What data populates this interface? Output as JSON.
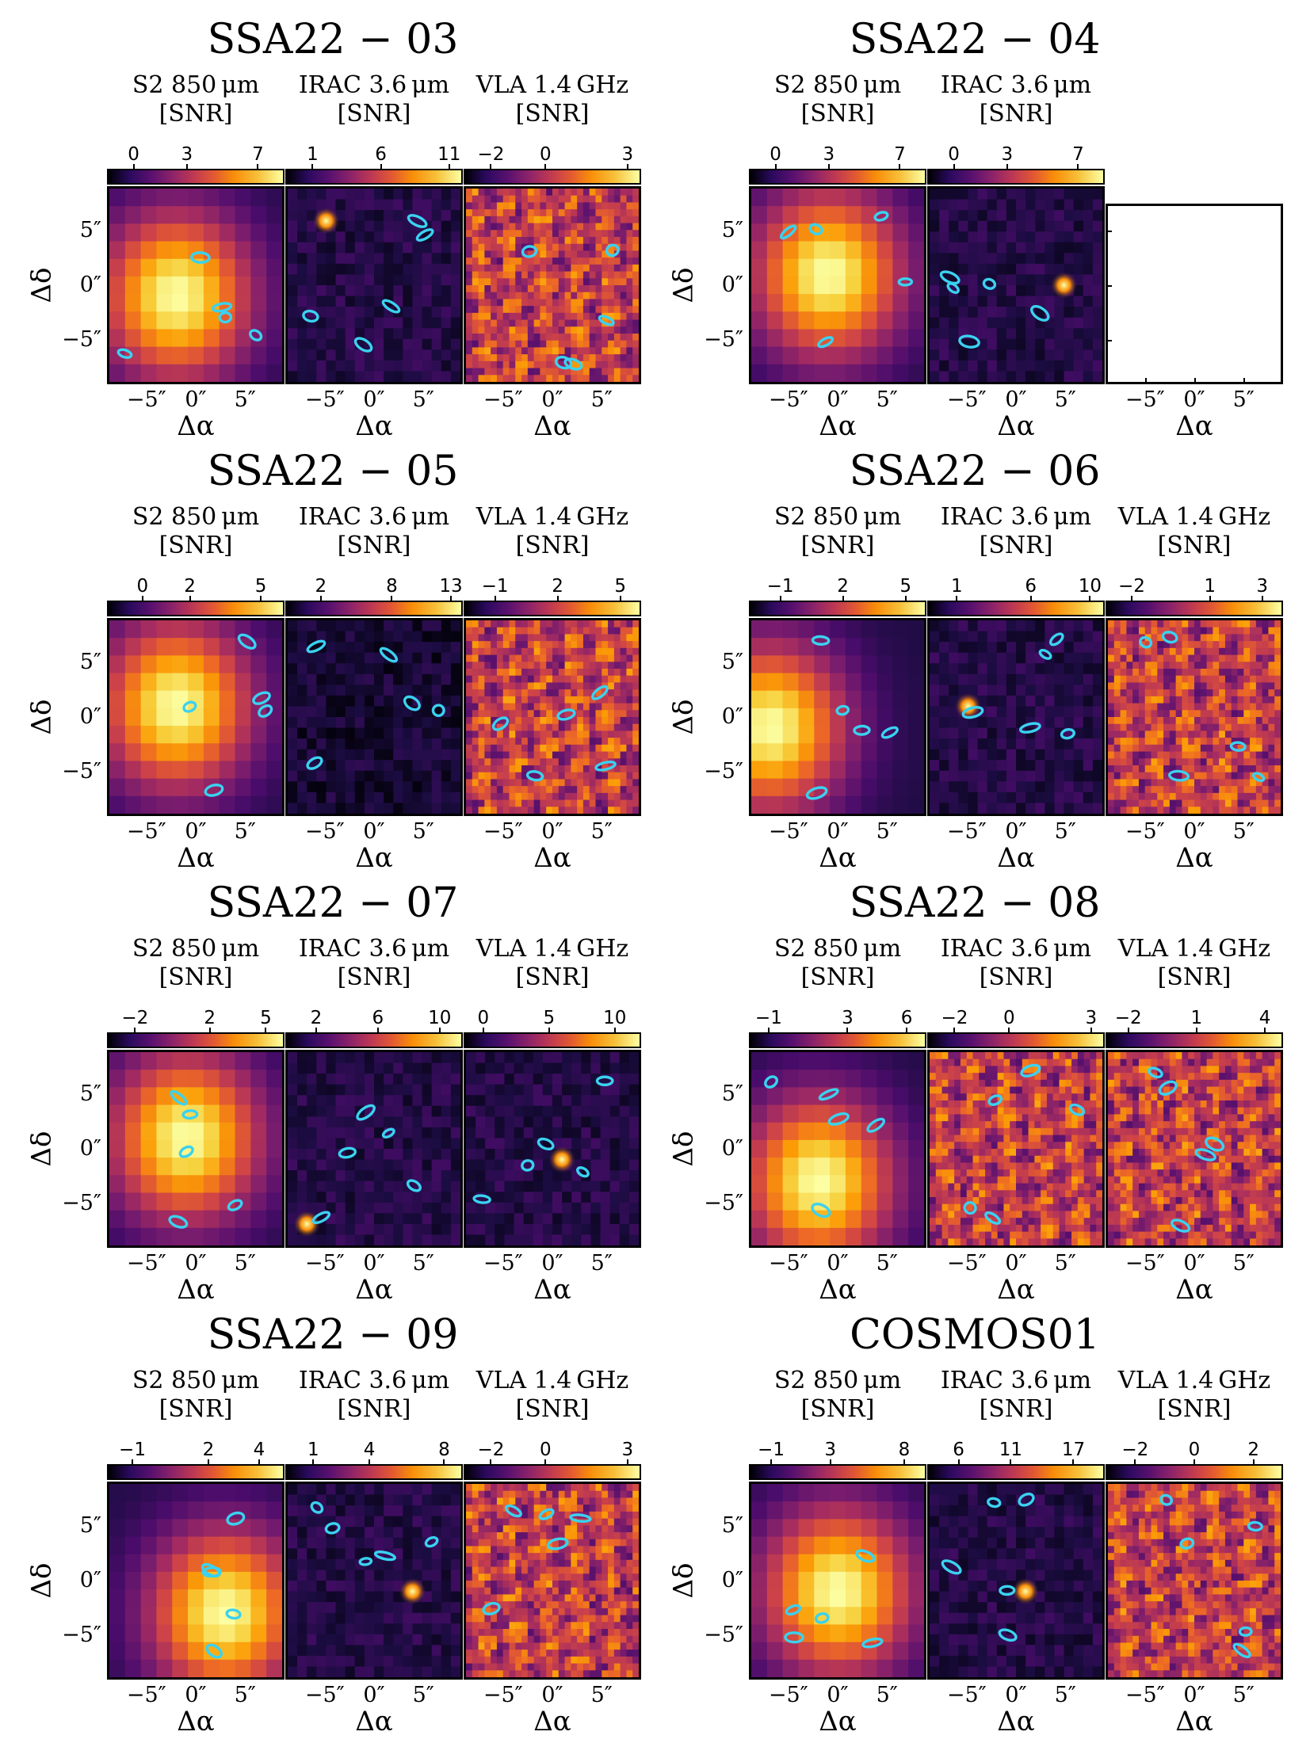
{
  "figure": {
    "panel_titles": [
      "S2 850 μm",
      "IRAC 3.6 μm",
      "VLA 1.4 GHz"
    ],
    "snr_label": "[SNR]",
    "xlabel": "Δα",
    "ylabel": "Δδ",
    "xticks": [
      "−5″",
      "0″",
      "5″"
    ],
    "yticks": [
      "5″",
      "0″",
      "−5″"
    ]
  },
  "chart_data": [
    {
      "type": "heatmap",
      "title": "SSA22 − 03",
      "panels": [
        {
          "name": "S2 850 μm",
          "colorbar_ticks": [
            "0",
            "3",
            "7"
          ],
          "colorbar_range": [
            -1.5,
            8.5
          ],
          "peak": [
            -2,
            -1
          ],
          "kind": "smooth"
        },
        {
          "name": "IRAC 3.6 μm",
          "colorbar_ticks": [
            "1",
            "6",
            "11"
          ],
          "colorbar_range": [
            -1,
            12
          ],
          "peak": [
            -5,
            6
          ],
          "kind": "point"
        },
        {
          "name": "VLA 1.4 GHz",
          "colorbar_ticks": [
            "−2",
            "0",
            "3"
          ],
          "colorbar_range": [
            -3,
            3.5
          ],
          "peak": [
            0,
            0
          ],
          "kind": "noise"
        }
      ]
    },
    {
      "type": "heatmap",
      "title": "SSA22 − 04",
      "panels": [
        {
          "name": "S2 850 μm",
          "colorbar_ticks": [
            "0",
            "3",
            "7"
          ],
          "colorbar_range": [
            -1.5,
            8.5
          ],
          "peak": [
            -1,
            1
          ],
          "kind": "smooth"
        },
        {
          "name": "IRAC 3.6 μm",
          "colorbar_ticks": [
            "0",
            "3",
            "7"
          ],
          "colorbar_range": [
            -1.5,
            8.5
          ],
          "peak": [
            5,
            0
          ],
          "kind": "point"
        },
        {
          "name": "VLA 1.4 GHz",
          "colorbar_ticks": [],
          "kind": "empty"
        }
      ]
    },
    {
      "type": "heatmap",
      "title": "SSA22 − 05",
      "panels": [
        {
          "name": "S2 850 μm",
          "colorbar_ticks": [
            "0",
            "2",
            "5"
          ],
          "colorbar_range": [
            -1.5,
            6
          ],
          "peak": [
            -2,
            1
          ],
          "kind": "smooth"
        },
        {
          "name": "IRAC 3.6 μm",
          "colorbar_ticks": [
            "2",
            "8",
            "13"
          ],
          "colorbar_range": [
            -1,
            14
          ],
          "peak": [
            0,
            0
          ],
          "kind": "dark"
        },
        {
          "name": "VLA 1.4 GHz",
          "colorbar_ticks": [
            "−1",
            "2",
            "5"
          ],
          "colorbar_range": [
            -2.5,
            6
          ],
          "peak": [
            0,
            1
          ],
          "kind": "noise"
        }
      ]
    },
    {
      "type": "heatmap",
      "title": "SSA22 − 06",
      "panels": [
        {
          "name": "S2 850 μm",
          "colorbar_ticks": [
            "−1",
            "2",
            "5"
          ],
          "colorbar_range": [
            -2.5,
            6
          ],
          "peak": [
            -7,
            -1
          ],
          "kind": "smooth"
        },
        {
          "name": "IRAC 3.6 μm",
          "colorbar_ticks": [
            "1",
            "6",
            "10"
          ],
          "colorbar_range": [
            -1,
            11
          ],
          "peak": [
            -5,
            1
          ],
          "kind": "point"
        },
        {
          "name": "VLA 1.4 GHz",
          "colorbar_ticks": [
            "−2",
            "1",
            "3"
          ],
          "colorbar_range": [
            -3,
            3.8
          ],
          "peak": [
            -5,
            1
          ],
          "kind": "noise"
        }
      ]
    },
    {
      "type": "heatmap",
      "title": "SSA22 − 07",
      "panels": [
        {
          "name": "S2 850 μm",
          "colorbar_ticks": [
            "−2",
            "2",
            "5"
          ],
          "colorbar_range": [
            -3.5,
            6
          ],
          "peak": [
            -1,
            1
          ],
          "kind": "smooth"
        },
        {
          "name": "IRAC 3.6 μm",
          "colorbar_ticks": [
            "2",
            "6",
            "10"
          ],
          "colorbar_range": [
            0,
            11.5
          ],
          "peak": [
            -7,
            -7
          ],
          "kind": "point"
        },
        {
          "name": "VLA 1.4 GHz",
          "colorbar_ticks": [
            "0",
            "5",
            "10"
          ],
          "colorbar_range": [
            -1.5,
            12
          ],
          "peak": [
            1,
            -1
          ],
          "kind": "point"
        }
      ]
    },
    {
      "type": "heatmap",
      "title": "SSA22 − 08",
      "panels": [
        {
          "name": "S2 850 μm",
          "colorbar_ticks": [
            "−1",
            "3",
            "6"
          ],
          "colorbar_range": [
            -2,
            7
          ],
          "peak": [
            -2,
            -3
          ],
          "kind": "smooth"
        },
        {
          "name": "IRAC 3.6 μm",
          "colorbar_ticks": [
            "−2",
            "0",
            "3"
          ],
          "colorbar_range": [
            -3,
            3.5
          ],
          "peak": [
            1,
            -2
          ],
          "kind": "noise"
        },
        {
          "name": "VLA 1.4 GHz",
          "colorbar_ticks": [
            "−2",
            "1",
            "4"
          ],
          "colorbar_range": [
            -3,
            4.8
          ],
          "peak": [
            1,
            -1
          ],
          "kind": "noise"
        }
      ]
    },
    {
      "type": "heatmap",
      "title": "SSA22 − 09",
      "panels": [
        {
          "name": "S2 850 μm",
          "colorbar_ticks": [
            "−1",
            "2",
            "4"
          ],
          "colorbar_range": [
            -2,
            5
          ],
          "peak": [
            3,
            -3
          ],
          "kind": "smooth"
        },
        {
          "name": "IRAC 3.6 μm",
          "colorbar_ticks": [
            "1",
            "4",
            "8"
          ],
          "colorbar_range": [
            -0.5,
            9
          ],
          "peak": [
            4,
            -1
          ],
          "kind": "point"
        },
        {
          "name": "VLA 1.4 GHz",
          "colorbar_ticks": [
            "−2",
            "0",
            "3"
          ],
          "colorbar_range": [
            -3,
            3.5
          ],
          "peak": [
            2,
            0
          ],
          "kind": "noise"
        }
      ]
    },
    {
      "type": "heatmap",
      "title": "COSMOS01",
      "panels": [
        {
          "name": "S2 850 μm",
          "colorbar_ticks": [
            "−1",
            "3",
            "8"
          ],
          "colorbar_range": [
            -2.5,
            9.5
          ],
          "peak": [
            0,
            -1
          ],
          "kind": "smooth"
        },
        {
          "name": "IRAC 3.6 μm",
          "colorbar_ticks": [
            "6",
            "11",
            "17"
          ],
          "colorbar_range": [
            3,
            20
          ],
          "peak": [
            1,
            -1
          ],
          "kind": "point"
        },
        {
          "name": "VLA 1.4 GHz",
          "colorbar_ticks": [
            "−2",
            "0",
            "2"
          ],
          "colorbar_range": [
            -3,
            3
          ],
          "peak": [
            1,
            -1
          ],
          "kind": "noise"
        }
      ]
    }
  ]
}
